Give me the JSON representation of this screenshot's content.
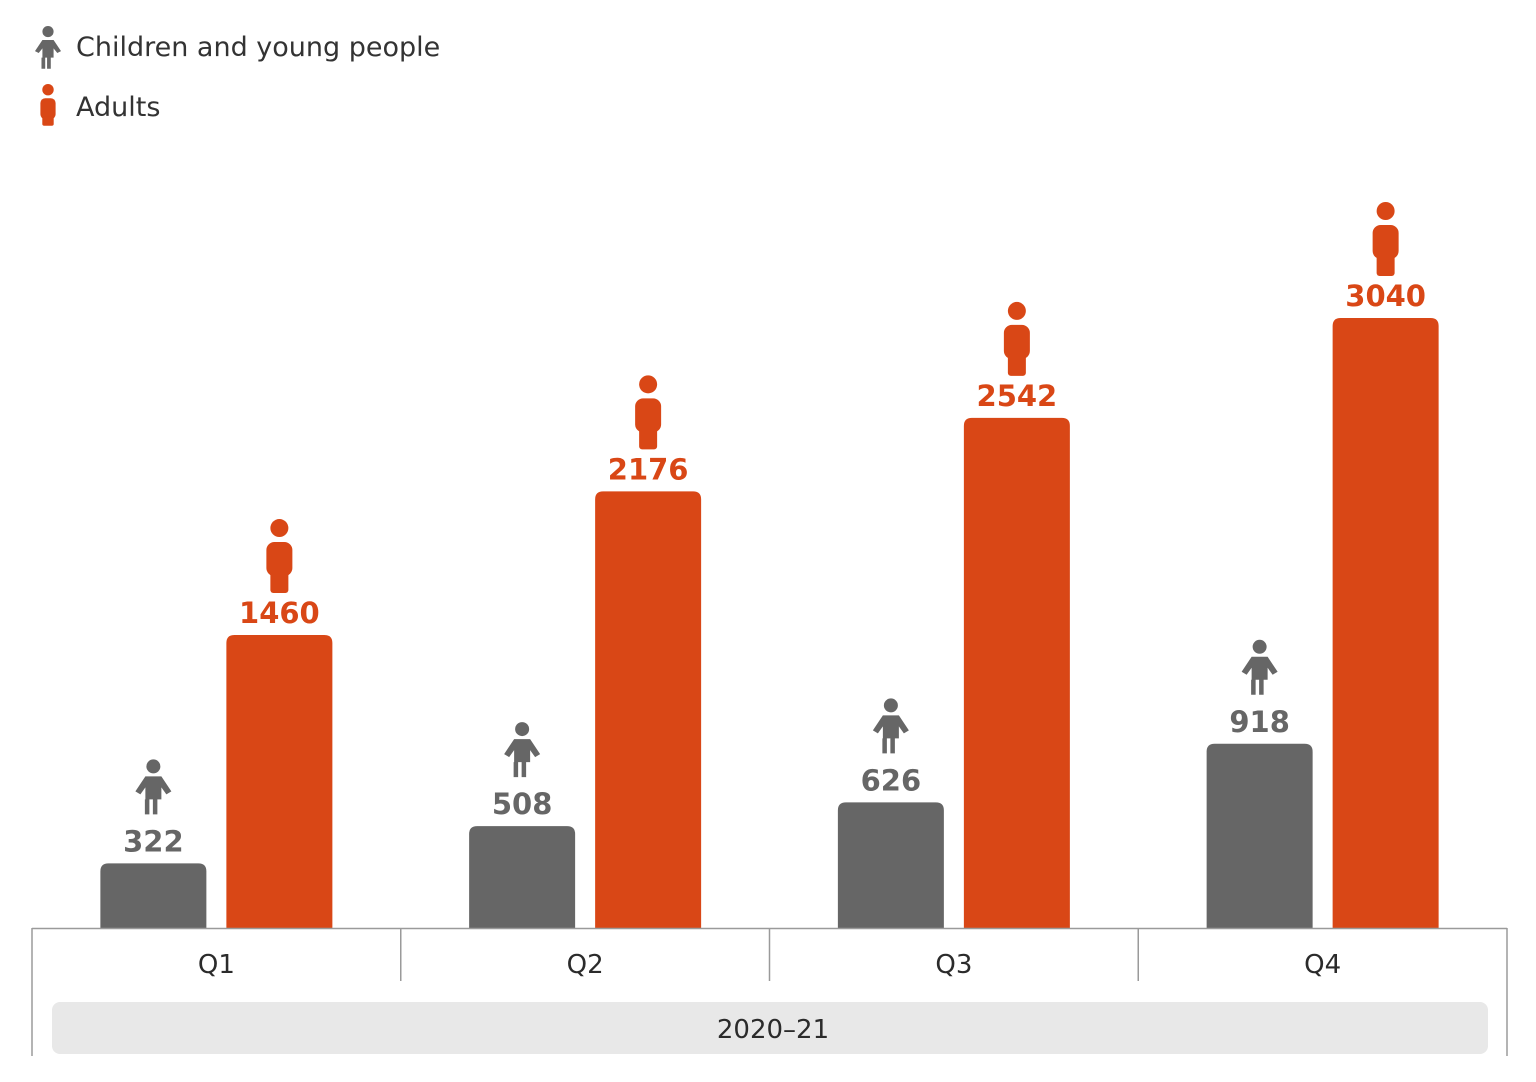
{
  "colors": {
    "children": "#666666",
    "adults": "#d94716",
    "axis": "#9a9a9a",
    "group_band": "#e8e8e8",
    "text": "#2b2b2b"
  },
  "legend": [
    {
      "name": "Children and young people",
      "icon": "child-figure-icon",
      "color": "#666666"
    },
    {
      "name": "Adults",
      "icon": "adult-figure-icon",
      "color": "#d94716"
    }
  ],
  "chart_data": {
    "type": "bar",
    "title": "",
    "xlabel": "",
    "ylabel": "",
    "group_label": "2020–21",
    "categories": [
      "Q1",
      "Q2",
      "Q3",
      "Q4"
    ],
    "series": [
      {
        "name": "Children and young people",
        "values": [
          322,
          508,
          626,
          918
        ]
      },
      {
        "name": "Adults",
        "values": [
          1460,
          2176,
          2542,
          3040
        ]
      }
    ],
    "ylim": [
      0,
      3500
    ],
    "grid": false,
    "legend_position": "top-left"
  }
}
